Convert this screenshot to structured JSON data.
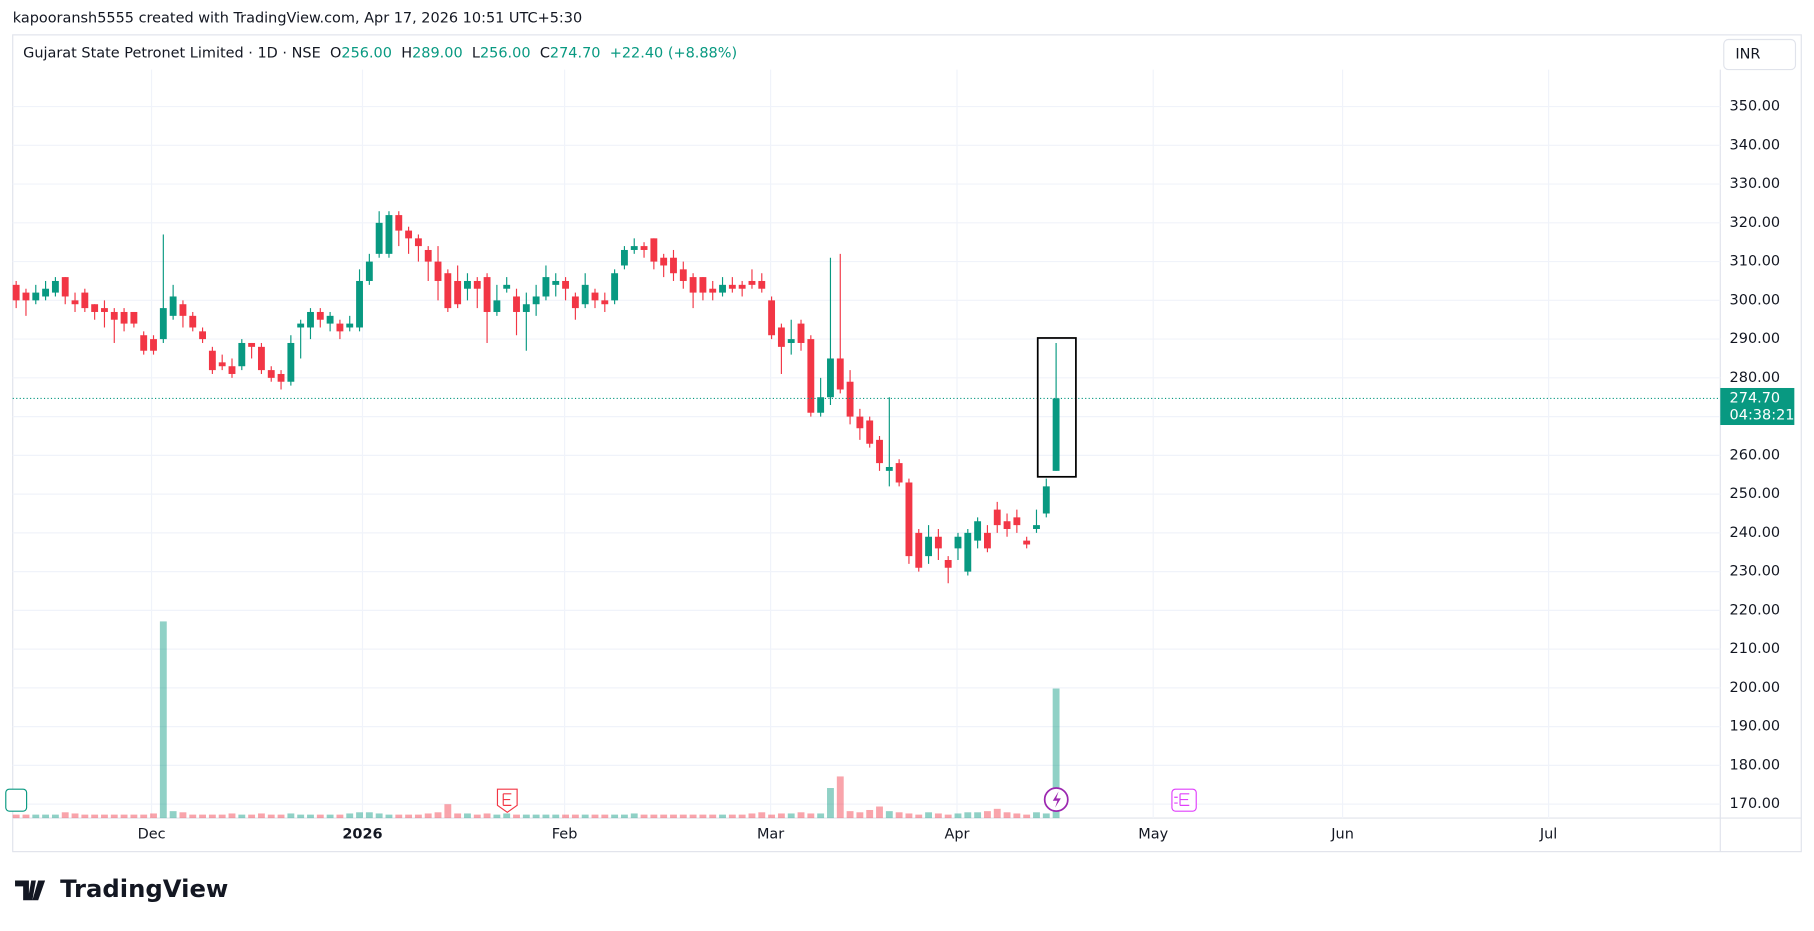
{
  "header": {
    "credit": "kapooransh5555 created with TradingView.com, Apr 17, 2026 10:51 UTC+5:30",
    "symbol": "Gujarat State Petronet Limited · 1D · NSE",
    "o_label": "O",
    "o": "256.00",
    "h_label": "H",
    "h": "289.00",
    "l_label": "L",
    "l": "256.00",
    "c_label": "C",
    "c": "274.70",
    "change": "+22.40 (+8.88%)",
    "currency": "INR",
    "countdown": "04:38:21",
    "logo": "TradingView"
  },
  "chart_data": {
    "type": "candlestick",
    "up_color": "#089981",
    "down_color": "#f23645",
    "open": [
      304,
      302,
      300,
      301,
      302,
      306,
      300,
      302,
      299,
      298,
      297,
      297,
      297,
      291,
      290,
      290,
      296,
      299,
      296,
      292,
      287,
      284,
      283,
      283,
      289,
      288,
      282,
      281,
      279,
      293,
      293,
      297,
      294,
      294,
      293,
      293,
      305,
      312,
      312,
      322,
      318,
      316,
      313,
      310,
      307,
      305,
      303,
      305,
      306,
      297,
      303,
      301,
      297,
      299,
      301,
      304,
      305,
      301,
      299,
      302,
      300,
      300,
      309,
      313,
      314,
      316,
      311,
      311,
      308,
      306,
      306,
      303,
      302,
      304,
      304,
      305,
      305,
      300,
      293,
      289,
      294,
      290,
      271,
      275,
      285,
      279,
      270,
      269,
      264,
      256,
      258,
      253,
      240,
      234,
      239,
      233,
      236,
      230,
      238,
      240,
      246,
      243,
      244,
      238,
      241,
      245,
      256
    ],
    "high": [
      305,
      303,
      304,
      305,
      306,
      306,
      302,
      303,
      299,
      300,
      298,
      298,
      297,
      292,
      291,
      317,
      304,
      300,
      297,
      293,
      288,
      286,
      285,
      290,
      289,
      289,
      283,
      282,
      291,
      295,
      298,
      298,
      297,
      295,
      296,
      308,
      312,
      323,
      323,
      323,
      319,
      317,
      314,
      314,
      308,
      309,
      307,
      306,
      307,
      304,
      306,
      303,
      302,
      304,
      309,
      307,
      306,
      302,
      307,
      303,
      302,
      308,
      314,
      316,
      315,
      316,
      312,
      313,
      310,
      307,
      306,
      305,
      306,
      306,
      305,
      308,
      307,
      301,
      294,
      295,
      295,
      291,
      280,
      311,
      312,
      282,
      272,
      270,
      265,
      275,
      259,
      254,
      241,
      242,
      241,
      234,
      240,
      241,
      244,
      242,
      248,
      245,
      246,
      239,
      246,
      254,
      289
    ],
    "low": [
      298,
      296,
      299,
      300,
      301,
      299,
      297,
      297,
      295,
      293,
      289,
      292,
      293,
      286,
      286,
      289,
      295,
      293,
      292,
      289,
      281,
      282,
      280,
      282,
      285,
      281,
      279,
      277,
      278,
      285,
      290,
      293,
      292,
      290,
      292,
      292,
      304,
      311,
      311,
      314,
      312,
      310,
      305,
      300,
      297,
      298,
      300,
      298,
      289,
      296,
      302,
      291,
      287,
      296,
      300,
      301,
      300,
      295,
      298,
      298,
      297,
      299,
      308,
      312,
      311,
      308,
      306,
      305,
      303,
      298,
      300,
      300,
      301,
      302,
      301,
      303,
      302,
      290,
      281,
      286,
      287,
      270,
      270,
      273,
      276,
      268,
      264,
      262,
      256,
      252,
      252,
      232,
      230,
      232,
      233,
      227,
      233,
      229,
      236,
      235,
      240,
      239,
      240,
      236,
      240,
      244,
      256
    ],
    "close": [
      300,
      300,
      302,
      303,
      305,
      301,
      299,
      298,
      297,
      297,
      295,
      294,
      294,
      287,
      287,
      298,
      301,
      296,
      293,
      290,
      282,
      283,
      281,
      289,
      288,
      282,
      280,
      279,
      289,
      294,
      297,
      295,
      296,
      292,
      294,
      305,
      310,
      320,
      322,
      318,
      316,
      314,
      310,
      305,
      298,
      299,
      305,
      303,
      297,
      300,
      304,
      297,
      299,
      301,
      306,
      305,
      303,
      298,
      304,
      300,
      299,
      307,
      313,
      314,
      313,
      310,
      309,
      307,
      305,
      302,
      302,
      302,
      304,
      303,
      303,
      304,
      303,
      291,
      288,
      290,
      289,
      271,
      275,
      285,
      277,
      270,
      267,
      263,
      258,
      257,
      253,
      234,
      231,
      239,
      236,
      231,
      239,
      240,
      243,
      236,
      242,
      241,
      242,
      237,
      242,
      252,
      274.7
    ],
    "volume": [
      3,
      3,
      3,
      3,
      3,
      5,
      4,
      3,
      3,
      3,
      3,
      3,
      3,
      3,
      4,
      170,
      6,
      5,
      3,
      3,
      3,
      3,
      4,
      3,
      3,
      4,
      3,
      3,
      4,
      3,
      3,
      3,
      3,
      3,
      4,
      5,
      5,
      4,
      3,
      3,
      3,
      3,
      4,
      5,
      12,
      4,
      4,
      3,
      4,
      3,
      4,
      3,
      3,
      3,
      3,
      3,
      3,
      3,
      3,
      3,
      3,
      3,
      3,
      4,
      3,
      3,
      3,
      3,
      3,
      3,
      3,
      3,
      3,
      3,
      3,
      4,
      5,
      3,
      4,
      4,
      5,
      4,
      4,
      26,
      36,
      6,
      5,
      7,
      10,
      6,
      5,
      4,
      3,
      5,
      4,
      3,
      4,
      5,
      5,
      6,
      8,
      5,
      4,
      3,
      5,
      4,
      112
    ],
    "volume_lim": [
      0,
      647
    ],
    "xlim": [
      -0.35,
      173.7
    ],
    "xticks": [
      {
        "value": 13.8,
        "label": "Dec"
      },
      {
        "value": 35.3,
        "label": "2026"
      },
      {
        "value": 55.9,
        "label": "Feb"
      },
      {
        "value": 76.9,
        "label": "Mar"
      },
      {
        "value": 95.9,
        "label": "Apr"
      },
      {
        "value": 115.9,
        "label": "May"
      },
      {
        "value": 135.2,
        "label": "Jun"
      },
      {
        "value": 156.2,
        "label": "Jul"
      }
    ],
    "ylim": [
      166.4,
      359.55
    ],
    "yticks": [
      {
        "value": 170,
        "label": "170.00"
      },
      {
        "value": 180,
        "label": "180.00"
      },
      {
        "value": 190,
        "label": "190.00"
      },
      {
        "value": 200,
        "label": "200.00"
      },
      {
        "value": 210,
        "label": "210.00"
      },
      {
        "value": 220,
        "label": "220.00"
      },
      {
        "value": 230,
        "label": "230.00"
      },
      {
        "value": 240,
        "label": "240.00"
      },
      {
        "value": 250,
        "label": "250.00"
      },
      {
        "value": 260,
        "label": "260.00"
      },
      {
        "value": 270,
        "label": "270.00"
      },
      {
        "value": 280,
        "label": "280.00"
      },
      {
        "value": 290,
        "label": "290.00"
      },
      {
        "value": 300,
        "label": "300.00"
      },
      {
        "value": 310,
        "label": "310.00"
      },
      {
        "value": 320,
        "label": "320.00"
      },
      {
        "value": 330,
        "label": "330.00"
      },
      {
        "value": 340,
        "label": "340.00"
      },
      {
        "value": 350,
        "label": "350.00"
      }
    ],
    "grid": true
  }
}
